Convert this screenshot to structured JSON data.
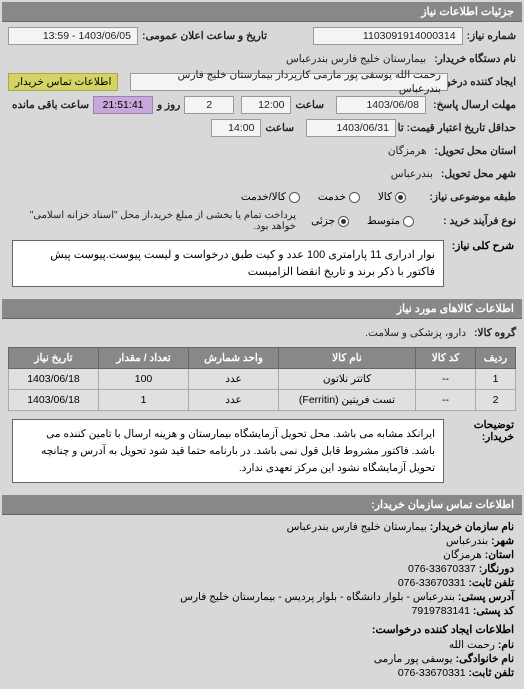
{
  "colors": {
    "header_bg": "#888888",
    "header_fg": "#ffffff",
    "body_bg": "#d8d8d8",
    "box_bg": "#f4f4f4",
    "yellow_hl": "#d4d466",
    "purple_hl": "#c8a8d8",
    "border": "#999999"
  },
  "main_header": "جزئیات اطلاعات نیاز",
  "fields": {
    "need_number": {
      "label": "شماره نیاز:",
      "value": "1103091914000314"
    },
    "announce_datetime": {
      "label": "تاریخ و ساعت اعلان عمومی:",
      "value": "1403/06/05 - 13:59"
    },
    "buyer_org": {
      "label": "نام دستگاه خریدار:",
      "value": "بیمارستان خلیج فارس بندرعباس"
    },
    "requester": {
      "label": "ایجاد کننده درخواست:",
      "value": "رحمت الله یوسفی پور مارمی کارپرداز بیمارستان خلیج فارس بندرعباس"
    },
    "contact_link": "اطلاعات تماس خریدار",
    "reply_deadline": {
      "label": "مهلت ارسال پاسخ:",
      "until": "تا تاریخ:",
      "date": "1403/06/08",
      "time_label": "ساعت",
      "time": "12:00",
      "days": "2",
      "days_label": "روز و",
      "remain": "21:51:41",
      "remain_label": "ساعت باقی مانده"
    },
    "validity": {
      "label": "حداقل تاریخ اعتبار قیمت: تا تاریخ:",
      "date": "1403/06/31",
      "time_label": "ساعت",
      "time": "14:00"
    },
    "delivery_province": {
      "label": "استان محل تحویل:",
      "value": "هرمزگان"
    },
    "delivery_city": {
      "label": "شهر محل تحویل:",
      "value": "بندرعباس"
    },
    "goods_type": {
      "label": "طبقه موضوعی نیاز:",
      "options": [
        "کالا",
        "خدمت",
        "کالا/خدمت"
      ],
      "selected": 0
    },
    "purchase_type": {
      "label": "نوع فرآیند خرید :",
      "options": [
        "متوسط",
        "جزئی"
      ],
      "selected": 1,
      "note": "پرداخت تمام یا بخشی از مبلغ خرید،از محل \"اسناد خزانه اسلامی\" خواهد بود."
    }
  },
  "description": {
    "label": "شرح کلی نیاز:",
    "text": "نوار ادراری 11 پارامتری 100 عدد و کیت طبق درخواست و لیست پیوست.پیوست پیش فاکتور با ذکر برند و تاریخ انقضا الزامیست"
  },
  "items_header": "اطلاعات کالاهای مورد نیاز",
  "group": {
    "label": "گروه کالا:",
    "value": "دارو، پزشکی و سلامت."
  },
  "table": {
    "columns": [
      "ردیف",
      "کد کالا",
      "نام کالا",
      "واحد شمارش",
      "تعداد / مقدار",
      "تاریخ نیاز"
    ],
    "col_widths": [
      "40px",
      "60px",
      "auto",
      "90px",
      "90px",
      "90px"
    ],
    "rows": [
      [
        "1",
        "--",
        "کاتتر نلاتون",
        "عدد",
        "100",
        "1403/06/18"
      ],
      [
        "2",
        "--",
        "تست فریتین (Ferritin)",
        "عدد",
        "1",
        "1403/06/18"
      ]
    ]
  },
  "notes": {
    "label": "توضیحات خریدار:",
    "text": "ایرانکد مشابه می باشد. محل تحویل آزمایشگاه بیمارستان و هزینه ارسال با تامین کننده می باشد. فاکتور مشروط قابل قول نمی باشد. در بارنامه حتما قید شود تحویل به آدرس و چنانچه تحویل آزمایشگاه نشود این مرکز تعهدی ندارد."
  },
  "contacts_header": "اطلاعات تماس سازمان خریدار:",
  "contacts": {
    "org": {
      "label": "نام سازمان خریدار:",
      "value": "بیمارستان خلیج فارس بندرعباس"
    },
    "city": {
      "label": "شهر:",
      "value": "بندرعباس"
    },
    "province": {
      "label": "استان:",
      "value": "هرمزگان"
    },
    "fax": {
      "label": "دورنگار:",
      "value": "33670337-076"
    },
    "tel": {
      "label": "تلفن ثابت:",
      "value": "33670331-076"
    },
    "address": {
      "label": "آدرس پستی:",
      "value": "بندرعباس - بلوار دانشگاه - بلوار پردیس - بیمارستان خلیج فارس"
    },
    "postal": {
      "label": "کد پستی:",
      "value": "7919783141"
    },
    "req_header": "اطلاعات ایجاد کننده درخواست:",
    "name": {
      "label": "نام:",
      "value": "رحمت الله"
    },
    "family": {
      "label": "نام خانوادگی:",
      "value": "یوسفی پور مارمی"
    },
    "tel2": {
      "label": "تلفن ثابت:",
      "value": "33670331-076"
    }
  }
}
